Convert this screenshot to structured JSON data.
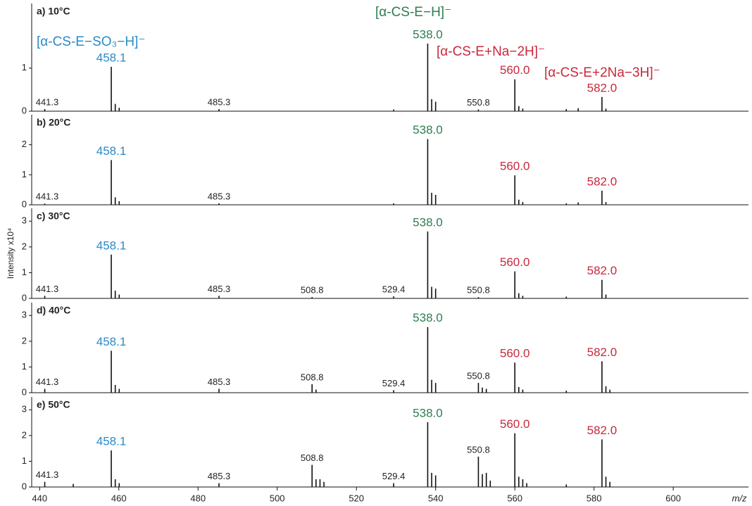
{
  "chart_data": [
    {
      "type": "spectrum",
      "title": "a) 10°C",
      "xlim": [
        438,
        619
      ],
      "ylim": [
        0,
        2.5
      ],
      "yticks": [
        0,
        1
      ],
      "annotations": [
        {
          "text": "[α-CS-E−SO₃−H]⁻",
          "color": "#2a8ac8"
        },
        {
          "text": "[α-CS-E−H]⁻",
          "color": "#2e7d4f"
        },
        {
          "text": "[α-CS-E+Na−2H]⁻",
          "color": "#c8283c"
        },
        {
          "text": "[α-CS-E+2Na−3H]⁻",
          "color": "#c8283c"
        }
      ],
      "x": [
        441.3,
        458.1,
        459.1,
        460.1,
        485.3,
        529.4,
        538,
        539,
        540,
        550.8,
        560,
        561,
        562,
        573,
        576,
        582,
        583
      ],
      "values": [
        0.05,
        1.03,
        0.17,
        0.08,
        0.05,
        0.04,
        1.57,
        0.28,
        0.22,
        0.04,
        0.74,
        0.12,
        0.06,
        0.05,
        0.07,
        0.33,
        0.06
      ],
      "x_labels": [
        "441.3",
        "458.1",
        null,
        null,
        "485.3",
        null,
        "538.0",
        null,
        null,
        "550.8",
        "560.0",
        null,
        null,
        null,
        null,
        "582.0",
        null
      ],
      "label_colors": [
        "#222222",
        "#2a8ac8",
        null,
        null,
        "#222222",
        null,
        "#2e7d4f",
        null,
        null,
        "#222222",
        "#c8283c",
        null,
        null,
        null,
        null,
        "#c8283c",
        null
      ]
    },
    {
      "type": "spectrum",
      "title": "b) 20°C",
      "xlim": [
        438,
        619
      ],
      "ylim": [
        0,
        3
      ],
      "yticks": [
        0,
        1,
        2
      ],
      "x": [
        441.3,
        458.1,
        459.1,
        460.1,
        485.3,
        529.4,
        538,
        539,
        540,
        560,
        561,
        562,
        573,
        576,
        582,
        583
      ],
      "values": [
        0.04,
        1.49,
        0.25,
        0.12,
        0.05,
        0.05,
        2.19,
        0.4,
        0.33,
        0.98,
        0.17,
        0.09,
        0.05,
        0.08,
        0.47,
        0.09
      ],
      "x_labels": [
        "441.3",
        "458.1",
        null,
        null,
        "485.3",
        null,
        "538.0",
        null,
        null,
        "560.0",
        null,
        null,
        null,
        null,
        "582.0",
        null
      ],
      "label_colors": [
        "#222222",
        "#2a8ac8",
        null,
        null,
        "#222222",
        null,
        "#2e7d4f",
        null,
        null,
        "#c8283c",
        null,
        null,
        null,
        null,
        "#c8283c",
        null
      ]
    },
    {
      "type": "spectrum",
      "title": "c) 30°C",
      "xlim": [
        438,
        619
      ],
      "ylim": [
        0,
        3.5
      ],
      "yticks": [
        0,
        1,
        2,
        3
      ],
      "ylabel": "Intensity x10⁴",
      "x": [
        441.3,
        458.1,
        459.1,
        460.1,
        485.3,
        508.8,
        529.4,
        538,
        539,
        540,
        550.8,
        560,
        561,
        562,
        573,
        582,
        583
      ],
      "values": [
        0.1,
        1.7,
        0.3,
        0.15,
        0.1,
        0.05,
        0.08,
        2.6,
        0.45,
        0.38,
        0.05,
        1.05,
        0.2,
        0.1,
        0.07,
        0.72,
        0.15
      ],
      "x_labels": [
        "441.3",
        "458.1",
        null,
        null,
        "485.3",
        "508.8",
        "529.4",
        "538.0",
        null,
        null,
        "550.8",
        "560.0",
        null,
        null,
        null,
        "582.0",
        null
      ],
      "label_colors": [
        "#222222",
        "#2a8ac8",
        null,
        null,
        "#222222",
        "#222222",
        "#222222",
        "#2e7d4f",
        null,
        null,
        "#222222",
        "#c8283c",
        null,
        null,
        null,
        "#c8283c",
        null
      ]
    },
    {
      "type": "spectrum",
      "title": "d) 40°C",
      "xlim": [
        438,
        619
      ],
      "ylim": [
        0,
        3.5
      ],
      "yticks": [
        0,
        1,
        2,
        3
      ],
      "x": [
        441.3,
        458.1,
        459.1,
        460.1,
        485.3,
        508.8,
        509.8,
        529.4,
        538,
        539,
        540,
        550.8,
        551.8,
        552.8,
        560,
        561,
        562,
        573,
        582,
        583,
        584
      ],
      "values": [
        0.15,
        1.63,
        0.3,
        0.15,
        0.15,
        0.33,
        0.12,
        0.1,
        2.55,
        0.5,
        0.38,
        0.38,
        0.2,
        0.15,
        1.17,
        0.22,
        0.12,
        0.08,
        1.22,
        0.25,
        0.12
      ],
      "x_labels": [
        "441.3",
        "458.1",
        null,
        null,
        "485.3",
        "508.8",
        null,
        "529.4",
        "538.0",
        null,
        null,
        "550.8",
        null,
        null,
        "560.0",
        null,
        null,
        null,
        "582.0",
        null,
        null
      ],
      "label_colors": [
        "#222222",
        "#2a8ac8",
        null,
        null,
        "#222222",
        "#222222",
        null,
        "#222222",
        "#2e7d4f",
        null,
        null,
        "#222222",
        null,
        null,
        "#c8283c",
        null,
        null,
        null,
        "#c8283c",
        null,
        null
      ]
    },
    {
      "type": "spectrum",
      "title": "e) 50°C",
      "xlim": [
        438,
        619
      ],
      "ylim": [
        0,
        3.5
      ],
      "yticks": [
        0,
        1,
        2,
        3
      ],
      "xticks": [
        440,
        460,
        480,
        500,
        520,
        540,
        560,
        580,
        600
      ],
      "xlabel": "m/z",
      "x": [
        441.3,
        448.5,
        458.1,
        459.1,
        460.1,
        485.3,
        508.8,
        509.8,
        510.8,
        511.8,
        529.4,
        538,
        539,
        540,
        550.8,
        551.8,
        552.8,
        553.8,
        560,
        561,
        562,
        563,
        573,
        582,
        583,
        584
      ],
      "values": [
        0.2,
        0.12,
        1.42,
        0.3,
        0.15,
        0.15,
        0.86,
        0.3,
        0.3,
        0.2,
        0.15,
        2.52,
        0.55,
        0.45,
        1.18,
        0.5,
        0.55,
        0.25,
        2.09,
        0.4,
        0.3,
        0.15,
        0.1,
        1.85,
        0.4,
        0.2
      ],
      "x_labels": [
        "441.3",
        null,
        "458.1",
        null,
        null,
        "485.3",
        "508.8",
        null,
        null,
        null,
        "529.4",
        "538.0",
        null,
        null,
        "550.8",
        null,
        null,
        null,
        "560.0",
        null,
        null,
        null,
        null,
        "582.0",
        null,
        null
      ],
      "label_colors": [
        "#222222",
        null,
        "#2a8ac8",
        null,
        null,
        "#222222",
        "#222222",
        null,
        null,
        null,
        "#222222",
        "#2e7d4f",
        null,
        null,
        "#222222",
        null,
        null,
        null,
        "#c8283c",
        null,
        null,
        null,
        null,
        "#c8283c",
        null,
        null
      ]
    }
  ]
}
